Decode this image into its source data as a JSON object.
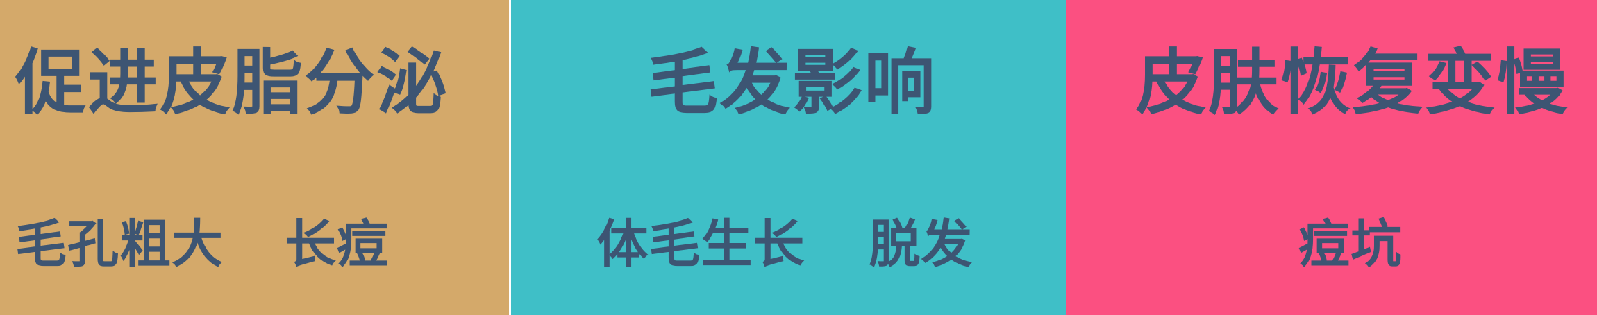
{
  "colors": {
    "panel_1_background": "#d4a96a",
    "panel_2_background": "#3fbfc7",
    "panel_3_background": "#fb5081",
    "text": "#3d5573"
  },
  "panels": [
    {
      "title": "促进皮脂分泌",
      "items": [
        "毛孔粗大",
        "长痘"
      ]
    },
    {
      "title": "毛发影响",
      "items": [
        "体毛生长",
        "脱发"
      ]
    },
    {
      "title": "皮肤恢复变慢",
      "items": [
        "痘坑"
      ]
    }
  ]
}
